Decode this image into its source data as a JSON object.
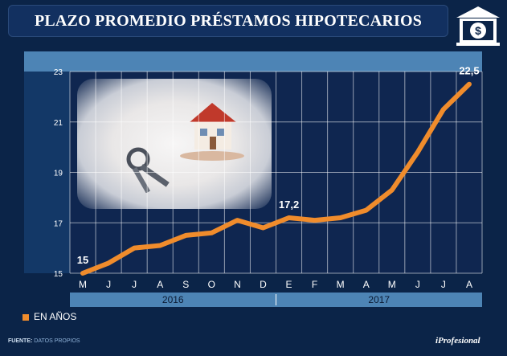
{
  "title": "PLAZO PROMEDIO PRÉSTAMOS HIPOTECARIOS",
  "legend": {
    "label": "EN AÑOS",
    "color": "#f08c2c"
  },
  "source": {
    "label": "FUENTE:",
    "text": "DATOS PROPIOS"
  },
  "brand": "iProfesional",
  "logo_icon": "bank-dollar-icon",
  "years": [
    {
      "label": "2016",
      "from": "M",
      "to": "D"
    },
    {
      "label": "2017",
      "from": "E",
      "to": "A"
    }
  ],
  "chart_data": {
    "type": "line",
    "title": "PLAZO PROMEDIO PRÉSTAMOS HIPOTECARIOS",
    "categories": [
      "M",
      "J",
      "J",
      "A",
      "S",
      "O",
      "N",
      "D",
      "E",
      "F",
      "M",
      "A",
      "M",
      "J",
      "J",
      "A"
    ],
    "series": [
      {
        "name": "EN AÑOS",
        "color": "#f08c2c",
        "values": [
          15.0,
          15.4,
          16.0,
          16.1,
          16.5,
          16.6,
          17.1,
          16.8,
          17.2,
          17.1,
          17.2,
          17.5,
          18.3,
          19.8,
          21.5,
          22.5
        ]
      }
    ],
    "data_labels": [
      {
        "index": 0,
        "text": "15"
      },
      {
        "index": 8,
        "text": "17,2"
      },
      {
        "index": 15,
        "text": "22,5"
      }
    ],
    "yticks": [
      15,
      17,
      19,
      21,
      23
    ],
    "ylim": [
      15,
      23
    ],
    "grid": true,
    "legend_position": "bottom-left"
  }
}
